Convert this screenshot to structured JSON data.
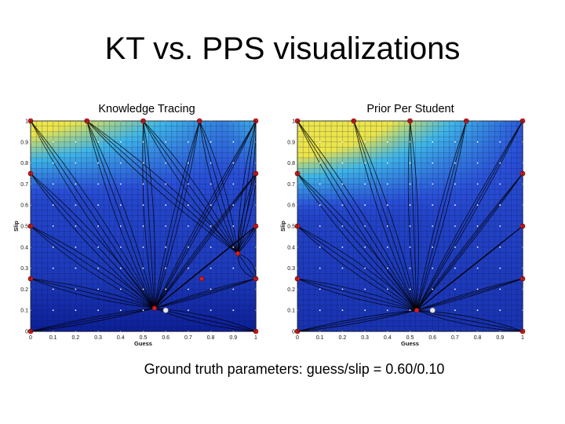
{
  "slide": {
    "title": "KT vs. PPS visualizations",
    "footer_prefix": "Ground truth parameters: guess/slip = ",
    "footer_values": "0.60/0.10"
  },
  "colors": {
    "field_dark": "#0d1f96",
    "field_mid": "#2a4fd6",
    "field_cyan": "#3fb6e6",
    "field_yellow": "#ece54a",
    "path_point": "#d81e1e",
    "truth_point": "#e6e6e6",
    "trajectory": "#000000"
  },
  "chart_data": [
    {
      "type": "heatmap",
      "title": "Knowledge Tracing",
      "xlabel": "Guess",
      "ylabel": "Slip",
      "xlim": [
        0,
        1
      ],
      "ylim": [
        0,
        1
      ],
      "xticks": [
        "0",
        "0.1",
        "0.2",
        "0.3",
        "0.4",
        "0.5",
        "0.6",
        "0.7",
        "0.8",
        "0.9",
        "1"
      ],
      "yticks": [
        "0",
        "0.1",
        "0.2",
        "0.3",
        "0.4",
        "0.5",
        "0.6",
        "0.7",
        "0.8",
        "0.9",
        "1"
      ],
      "grid": true,
      "start_points": [
        [
          0,
          1
        ],
        [
          0.25,
          1
        ],
        [
          0.5,
          1
        ],
        [
          0.75,
          1
        ],
        [
          1,
          1
        ],
        [
          1,
          0.75
        ],
        [
          1,
          0.5
        ],
        [
          1,
          0.25
        ],
        [
          1,
          0
        ],
        [
          0,
          0
        ],
        [
          0,
          0.25
        ],
        [
          0,
          0.5
        ],
        [
          0,
          0.75
        ]
      ],
      "convergence_points": [
        {
          "x": 0.55,
          "y": 0.11
        },
        {
          "x": 0.92,
          "y": 0.37
        },
        {
          "x": 0.76,
          "y": 0.25
        }
      ],
      "ground_truth": {
        "x": 0.6,
        "y": 0.1
      }
    },
    {
      "type": "heatmap",
      "title": "Prior Per Student",
      "xlabel": "Guess",
      "ylabel": "Slip",
      "xlim": [
        0,
        1
      ],
      "ylim": [
        0,
        1
      ],
      "xticks": [
        "0",
        "0.1",
        "0.2",
        "0.3",
        "0.4",
        "0.5",
        "0.6",
        "0.7",
        "0.8",
        "0.9",
        "1"
      ],
      "yticks": [
        "0",
        "0.1",
        "0.2",
        "0.3",
        "0.4",
        "0.5",
        "0.6",
        "0.7",
        "0.8",
        "0.9",
        "1"
      ],
      "grid": true,
      "start_points": [
        [
          0,
          1
        ],
        [
          0.25,
          1
        ],
        [
          0.5,
          1
        ],
        [
          0.75,
          1
        ],
        [
          1,
          1
        ],
        [
          1,
          0.75
        ],
        [
          1,
          0.5
        ],
        [
          1,
          0.25
        ],
        [
          1,
          0
        ],
        [
          0,
          0
        ],
        [
          0,
          0.25
        ],
        [
          0,
          0.5
        ],
        [
          0,
          0.75
        ]
      ],
      "convergence_points": [
        {
          "x": 0.53,
          "y": 0.1
        }
      ],
      "ground_truth": {
        "x": 0.6,
        "y": 0.1
      }
    }
  ]
}
